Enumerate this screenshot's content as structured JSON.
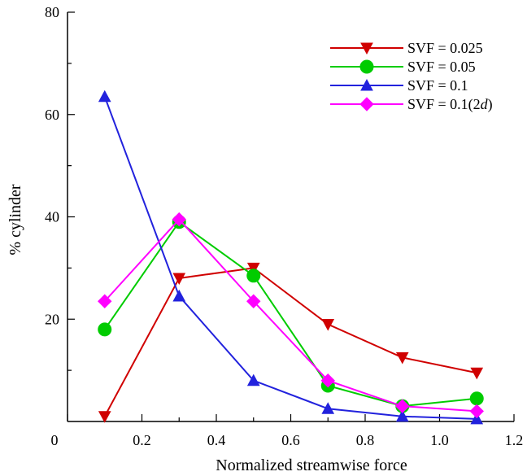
{
  "chart_data": {
    "type": "line",
    "xlabel": "Normalized streamwise force",
    "ylabel": "% cylinder",
    "xlim": [
      0,
      1.2
    ],
    "ylim": [
      0,
      80
    ],
    "x_ticks": [
      "0",
      "0.2",
      "0.4",
      "0.6",
      "0.8",
      "1.0",
      "1.2"
    ],
    "y_ticks": [
      "20",
      "40",
      "60",
      "80"
    ],
    "x_tick_values": [
      0,
      0.2,
      0.4,
      0.6,
      0.8,
      1.0,
      1.2
    ],
    "y_tick_values": [
      20,
      40,
      60,
      80
    ],
    "legend_position": "top-right",
    "grid": false,
    "x": [
      0.1,
      0.3,
      0.5,
      0.7,
      0.9,
      1.1
    ],
    "series": [
      {
        "name": "SVF = 0.025",
        "color": "#d00000",
        "marker": "triangle-down",
        "values": [
          1,
          28,
          30,
          19,
          12.5,
          9.5
        ]
      },
      {
        "name": "SVF = 0.05",
        "color": "#00cc00",
        "marker": "circle",
        "values": [
          18,
          39,
          28.5,
          7,
          3,
          4.5
        ]
      },
      {
        "name": "SVF = 0.1",
        "color": "#2222dd",
        "marker": "triangle-up",
        "values": [
          63.5,
          24.5,
          8,
          2.5,
          1,
          0.5
        ]
      },
      {
        "name": "SVF = 0.1(2d)",
        "name_main": "SVF = 0.1(2",
        "name_italic": "d",
        "name_end": ")",
        "color": "#ff00ff",
        "marker": "diamond",
        "values": [
          23.5,
          39.5,
          23.5,
          8,
          3,
          2
        ]
      }
    ]
  }
}
